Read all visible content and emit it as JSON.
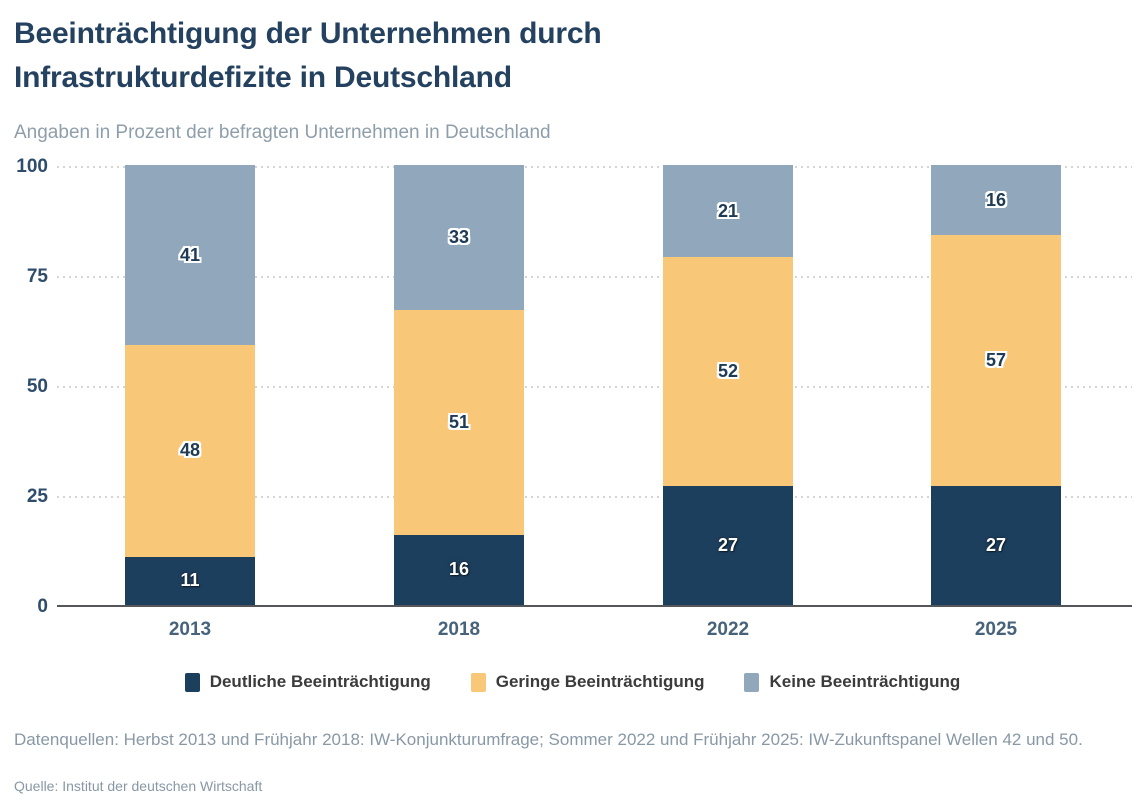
{
  "header": {
    "title": "Beeinträchtigung der Unternehmen durch Infrastrukturdefizite in Deutschland",
    "subtitle": "Angaben in Prozent der befragten Unternehmen in Deutschland"
  },
  "chart_data": {
    "type": "bar",
    "stacked": true,
    "title": "Beeinträchtigung der Unternehmen durch Infrastrukturdefizite in Deutschland",
    "subtitle": "Angaben in Prozent der befragten Unternehmen in Deutschland",
    "categories": [
      "2013",
      "2018",
      "2022",
      "2025"
    ],
    "series": [
      {
        "name": "Deutliche Beeinträchtigung",
        "color": "#1d3f5e",
        "values": [
          11,
          16,
          27,
          27
        ]
      },
      {
        "name": "Geringe Beeinträchtigung",
        "color": "#f9c778",
        "values": [
          48,
          51,
          52,
          57
        ]
      },
      {
        "name": "Keine Beeinträchtigung",
        "color": "#90a7bc",
        "values": [
          41,
          33,
          21,
          16
        ]
      }
    ],
    "ylim": [
      0,
      100
    ],
    "yticks": [
      0,
      25,
      50,
      75,
      100
    ],
    "grid": "dotted-horizontal",
    "legend_position": "bottom"
  },
  "footer": {
    "data_sources": "Datenquellen: Herbst 2013 und Frühjahr 2018: IW-Konjunkturumfrage; Sommer 2022 und Frühjahr 2025: IW-Zukunftspanel Wellen 42 und 50.",
    "source": "Quelle: Institut der deutschen Wirtschaft"
  }
}
